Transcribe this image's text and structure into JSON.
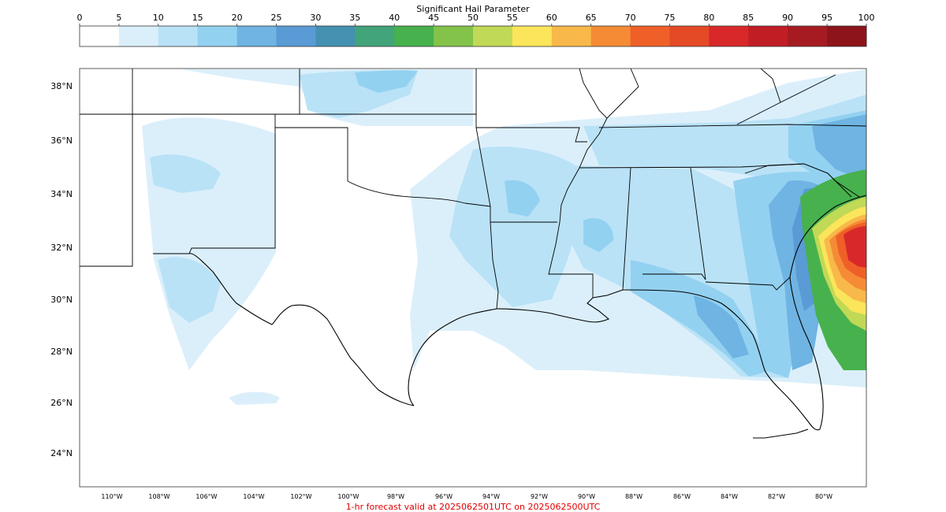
{
  "colorbar": {
    "title": "Significant Hail Parameter",
    "ticks": [
      "0",
      "5",
      "10",
      "15",
      "20",
      "25",
      "30",
      "35",
      "40",
      "45",
      "50",
      "55",
      "60",
      "65",
      "70",
      "75",
      "80",
      "85",
      "90",
      "95",
      "100"
    ],
    "colors": [
      "#ffffff",
      "#dbeffb",
      "#b9e2f6",
      "#93d1f1",
      "#6fb4e2",
      "#5a9bd5",
      "#4591b1",
      "#42a47a",
      "#47b14d",
      "#83c34a",
      "#c0d956",
      "#fbe55a",
      "#f8b84a",
      "#f58b35",
      "#ef6028",
      "#e54a27",
      "#d8282a",
      "#c11d25",
      "#a61b22",
      "#8d141b"
    ]
  },
  "map": {
    "lat_labels": [
      "38°N",
      "36°N",
      "34°N",
      "32°N",
      "30°N",
      "28°N",
      "26°N",
      "24°N"
    ],
    "lon_labels": [
      "110°W",
      "108°W",
      "106°W",
      "104°W",
      "102°W",
      "100°W",
      "98°W",
      "96°W",
      "94°W",
      "92°W",
      "90°W",
      "88°W",
      "86°W",
      "84°W",
      "82°W",
      "80°W"
    ],
    "colors": {
      "background": "#ffffff",
      "frame": "#333333",
      "borders": "#000000"
    }
  },
  "footer": {
    "text": "1-hr forecast valid at 2025062501UTC on 2025062500UTC",
    "color": "#e00000"
  }
}
